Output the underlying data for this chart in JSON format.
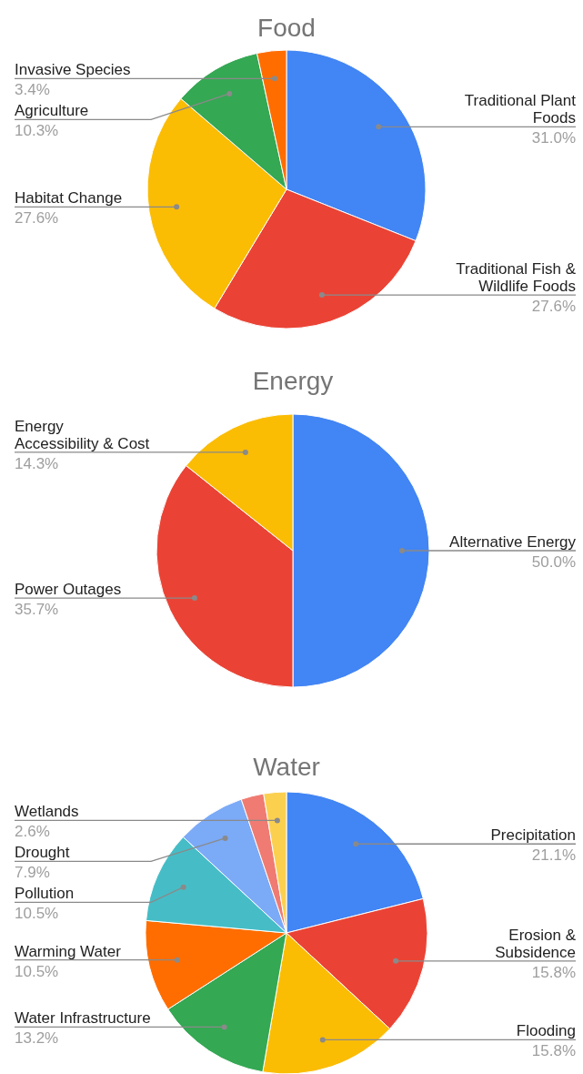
{
  "chart_data": [
    {
      "type": "pie",
      "title": "Food",
      "categories": [
        "Traditional Plant Foods",
        "Traditional Fish & Wildlife Foods",
        "Habitat Change",
        "Agriculture",
        "Invasive Species"
      ],
      "values": [
        31.0,
        27.6,
        27.6,
        10.3,
        3.4
      ],
      "colors": [
        "#4285f4",
        "#ea4335",
        "#fbbc04",
        "#34a853",
        "#ff6d01"
      ],
      "value_labels": [
        "31.0%",
        "27.6%",
        "27.6%",
        "10.3%",
        "3.4%"
      ]
    },
    {
      "type": "pie",
      "title": "Energy",
      "categories": [
        "Alternative Energy",
        "Power Outages",
        "Energy Accessibility & Cost"
      ],
      "values": [
        50.0,
        35.7,
        14.3
      ],
      "colors": [
        "#4285f4",
        "#ea4335",
        "#fbbc04"
      ],
      "value_labels": [
        "50.0%",
        "35.7%",
        "14.3%"
      ]
    },
    {
      "type": "pie",
      "title": "Water",
      "categories": [
        "Precipitation",
        "Erosion & Subsidence",
        "Flooding",
        "Water Infrastructure",
        "Warming Water",
        "Pollution",
        "Drought",
        null,
        "Wetlands"
      ],
      "values": [
        21.1,
        15.8,
        15.8,
        13.2,
        10.5,
        10.5,
        7.9,
        2.6,
        2.6
      ],
      "colors": [
        "#4285f4",
        "#ea4335",
        "#fbbc04",
        "#34a853",
        "#ff6d01",
        "#46bdc6",
        "#7baaf7",
        "#f07b72",
        "#fcd04f"
      ],
      "value_labels": [
        "21.1%",
        "15.8%",
        "15.8%",
        "13.2%",
        "10.5%",
        "10.5%",
        "7.9%",
        null,
        "2.6%"
      ]
    }
  ]
}
